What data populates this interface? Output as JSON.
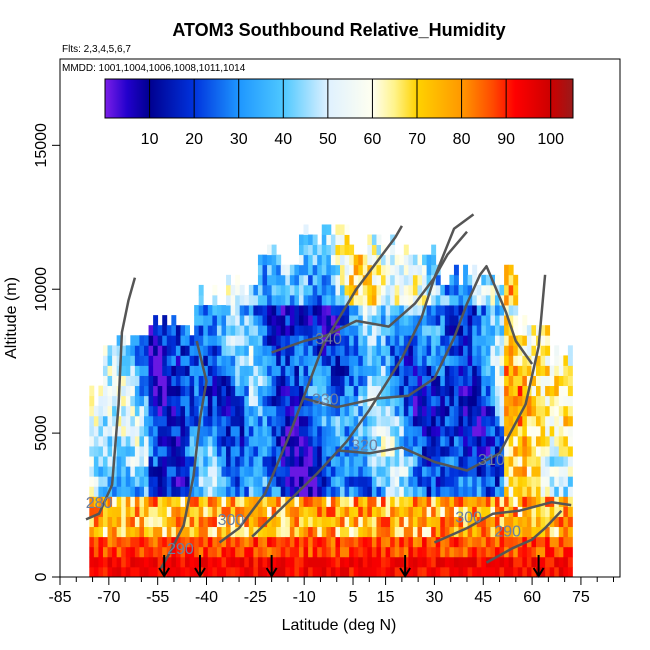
{
  "chart_data": {
    "type": "heatmap",
    "title": "ATOM3 Southbound Relative_Humidity",
    "flights_note": "Flts: 2,3,4,5,6,7",
    "dates_note": "MMDD: 1001,1004,1006,1008,1011,1014",
    "xlabel": "Latitude (deg N)",
    "ylabel": "Altitude (m)",
    "xlim": [
      -85,
      87
    ],
    "ylim": [
      0,
      18000
    ],
    "x_ticks_major": [
      -85,
      -70,
      -55,
      -40,
      -25,
      -10,
      5,
      15,
      30,
      45,
      60,
      75
    ],
    "x_tick_labels": [
      "-85",
      "-70",
      "-55",
      "-40",
      "-25",
      "-10",
      "5",
      "15",
      "30",
      "45",
      "60",
      "75"
    ],
    "x_ticks_minor": [
      -80,
      -75,
      -65,
      -60,
      -50,
      -45,
      -35,
      -30,
      -20,
      -15,
      -5,
      0,
      10,
      20,
      25,
      35,
      40,
      50,
      55,
      65,
      70,
      80,
      85
    ],
    "y_ticks": [
      0,
      5000,
      10000,
      15000
    ],
    "y_tick_labels": [
      "0",
      "5000",
      "10000",
      "15000"
    ],
    "colorbar": {
      "min": 0,
      "max": 105,
      "ticks": [
        10,
        20,
        30,
        40,
        50,
        60,
        70,
        80,
        90,
        100
      ],
      "tick_labels": [
        "10",
        "20",
        "30",
        "40",
        "50",
        "60",
        "70",
        "80",
        "90",
        "100"
      ],
      "stops": [
        {
          "v": 0,
          "c": "#7b1ee8"
        },
        {
          "v": 5,
          "c": "#2200cc"
        },
        {
          "v": 10,
          "c": "#000090"
        },
        {
          "v": 20,
          "c": "#0033dd"
        },
        {
          "v": 30,
          "c": "#1e96ff"
        },
        {
          "v": 40,
          "c": "#4ec8ff"
        },
        {
          "v": 50,
          "c": "#dff1ff"
        },
        {
          "v": 60,
          "c": "#fffff0"
        },
        {
          "v": 65,
          "c": "#fff38a"
        },
        {
          "v": 70,
          "c": "#ffd200"
        },
        {
          "v": 80,
          "c": "#ff9800"
        },
        {
          "v": 87,
          "c": "#ff4a00"
        },
        {
          "v": 92,
          "c": "#ff0000"
        },
        {
          "v": 100,
          "c": "#cc0000"
        },
        {
          "v": 105,
          "c": "#9a1a1a"
        }
      ]
    },
    "contour_labels": [
      {
        "text": "340",
        "x": -2.5,
        "y": 8100
      },
      {
        "text": "330",
        "x": -3.5,
        "y": 6000
      },
      {
        "text": "320",
        "x": 8.5,
        "y": 4400
      },
      {
        "text": "310",
        "x": 47.5,
        "y": 3900
      },
      {
        "text": "300",
        "x": 40.5,
        "y": 1900
      },
      {
        "text": "290",
        "x": 52.5,
        "y": 1400
      },
      {
        "text": "290",
        "x": -48,
        "y": 800
      },
      {
        "text": "280",
        "x": -73,
        "y": 2400
      },
      {
        "text": "300",
        "x": -32.5,
        "y": 1800
      }
    ],
    "theta_contours": [
      {
        "name": "280",
        "points": [
          [
            -77,
            2000
          ],
          [
            -73,
            2200
          ],
          [
            -69,
            3200
          ],
          [
            -67,
            6000
          ],
          [
            -66,
            8500
          ],
          [
            -64,
            9600
          ],
          [
            -62,
            10400
          ]
        ]
      },
      {
        "name": "290",
        "points": [
          [
            -54,
            300
          ],
          [
            -51,
            900
          ],
          [
            -47,
            1800
          ],
          [
            -44,
            3500
          ],
          [
            -42,
            5500
          ],
          [
            -40,
            6800
          ],
          [
            -43,
            8200
          ]
        ]
      },
      {
        "name": "300",
        "points": [
          [
            -36,
            1200
          ],
          [
            -30,
            1700
          ],
          [
            -22,
            2900
          ],
          [
            -15,
            4800
          ],
          [
            -8,
            6900
          ],
          [
            -4,
            8100
          ],
          [
            6,
            10000
          ],
          [
            18,
            11800
          ],
          [
            20,
            12200
          ]
        ]
      },
      {
        "name": "310",
        "points": [
          [
            -26,
            1400
          ],
          [
            -16,
            2500
          ],
          [
            -6,
            3600
          ],
          [
            3,
            4700
          ],
          [
            10,
            5800
          ],
          [
            20,
            7600
          ],
          [
            26,
            9000
          ],
          [
            30,
            10400
          ],
          [
            34,
            11200
          ],
          [
            40,
            12000
          ]
        ]
      },
      {
        "name": "320",
        "points": [
          [
            0,
            4400
          ],
          [
            10,
            4300
          ],
          [
            20,
            4500
          ],
          [
            30,
            4000
          ],
          [
            40,
            3700
          ],
          [
            50,
            4300
          ],
          [
            58,
            6000
          ],
          [
            62,
            8000
          ],
          [
            64,
            10500
          ]
        ]
      },
      {
        "name": "330",
        "points": [
          [
            -10,
            6200
          ],
          [
            0,
            5900
          ],
          [
            12,
            6200
          ],
          [
            22,
            6300
          ],
          [
            30,
            6900
          ],
          [
            36,
            8300
          ],
          [
            40,
            9500
          ],
          [
            44,
            10500
          ],
          [
            46,
            10800
          ],
          [
            52,
            9200
          ],
          [
            55,
            8200
          ],
          [
            60,
            7400
          ]
        ]
      },
      {
        "name": "340",
        "points": [
          [
            -20,
            7800
          ],
          [
            -10,
            8200
          ],
          [
            -3,
            8400
          ],
          [
            6,
            8900
          ],
          [
            16,
            8700
          ],
          [
            24,
            9500
          ],
          [
            30,
            10400
          ],
          [
            36,
            12100
          ],
          [
            42,
            12600
          ]
        ]
      },
      {
        "name": "300 low",
        "points": [
          [
            30,
            1200
          ],
          [
            40,
            1700
          ],
          [
            48,
            2200
          ],
          [
            56,
            2300
          ],
          [
            66,
            2600
          ],
          [
            72,
            2500
          ]
        ]
      },
      {
        "name": "290 low",
        "points": [
          [
            46,
            500
          ],
          [
            54,
            1000
          ],
          [
            60,
            1300
          ],
          [
            64,
            1700
          ],
          [
            69,
            2300
          ]
        ]
      }
    ],
    "flight_arrows": [
      -53,
      -42,
      -20,
      21,
      62
    ]
  }
}
